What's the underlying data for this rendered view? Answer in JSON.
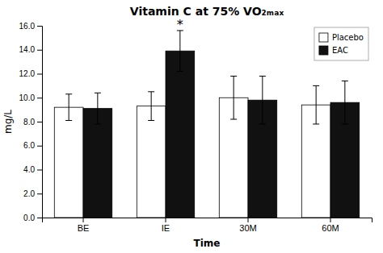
{
  "chart_data": {
    "type": "bar",
    "title": "Vitamin C at 75% VO₂ₘₐₓ",
    "xlabel": "Time",
    "ylabel": "mg/L",
    "categories": [
      "BE",
      "IE",
      "30M",
      "60M"
    ],
    "series": [
      {
        "name": "Placebo",
        "color": "#ffffff",
        "values": [
          9.2,
          9.3,
          10.0,
          9.4
        ],
        "errors": [
          1.1,
          1.2,
          1.8,
          1.6
        ]
      },
      {
        "name": "EAC",
        "color": "#111111",
        "values": [
          9.1,
          13.9,
          9.8,
          9.6
        ],
        "errors": [
          1.3,
          1.7,
          2.0,
          1.8
        ]
      }
    ],
    "annotations": [
      {
        "text": "*",
        "x": "IE",
        "series": "EAC"
      }
    ],
    "ylim": [
      0.0,
      16.0
    ],
    "yticks": [
      {
        "value": 0,
        "label": "0.0"
      },
      {
        "value": 2,
        "label": "2.0"
      },
      {
        "value": 4,
        "label": "4.0"
      },
      {
        "value": 6,
        "label": "6.0"
      },
      {
        "value": 8,
        "label": "8.0"
      },
      {
        "value": 10,
        "label": "10.0"
      },
      {
        "value": 12,
        "label": "12.0"
      },
      {
        "value": 14,
        "label": "14.0"
      },
      {
        "value": 16,
        "label": "16.0"
      }
    ],
    "grid": false,
    "legend": "upper right"
  }
}
